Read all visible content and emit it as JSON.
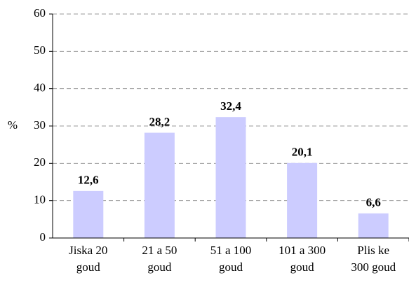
{
  "chart_data": {
    "type": "bar",
    "y_label": "%",
    "categories": [
      "Jiska 20\ngoud",
      "21 a 50\ngoud",
      "51 a 100\ngoud",
      "101 a 300\ngoud",
      "Plis ke\n300 goud"
    ],
    "values": [
      12.6,
      28.2,
      32.4,
      20.1,
      6.6
    ],
    "value_labels": [
      "12,6",
      "28,2",
      "32,4",
      "20,1",
      "6,6"
    ],
    "color": "#ccccff",
    "ylim": [
      0,
      60
    ],
    "yticks": [
      0,
      10,
      20,
      30,
      40,
      50,
      60
    ],
    "grid": true
  }
}
